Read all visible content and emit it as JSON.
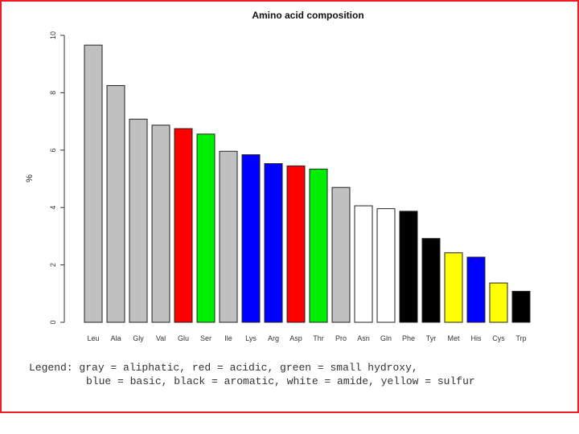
{
  "chart_data": {
    "type": "bar",
    "title": "Amino acid composition",
    "ylabel": "%",
    "xlabel": "",
    "ylim": [
      0,
      10
    ],
    "yticks": [
      0,
      2,
      4,
      6,
      8,
      10
    ],
    "grid": false,
    "categories": [
      "Leu",
      "Ala",
      "Gly",
      "Val",
      "Glu",
      "Ser",
      "Ile",
      "Lys",
      "Arg",
      "Asp",
      "Thr",
      "Pro",
      "Asn",
      "Gln",
      "Phe",
      "Tyr",
      "Met",
      "His",
      "Cys",
      "Trp"
    ],
    "values": [
      9.66,
      8.25,
      7.08,
      6.87,
      6.75,
      6.56,
      5.96,
      5.84,
      5.53,
      5.45,
      5.34,
      4.7,
      4.06,
      3.96,
      3.87,
      2.92,
      2.42,
      2.27,
      1.37,
      1.08
    ],
    "colors": [
      "#c0c0c0",
      "#c0c0c0",
      "#c0c0c0",
      "#c0c0c0",
      "#ff0000",
      "#00ee00",
      "#c0c0c0",
      "#0000ff",
      "#0000ff",
      "#ff0000",
      "#00ee00",
      "#c0c0c0",
      "#ffffff",
      "#ffffff",
      "#000000",
      "#000000",
      "#ffff00",
      "#0000ff",
      "#ffff00",
      "#000000"
    ]
  },
  "legend": {
    "line1": "Legend: gray = aliphatic, red = acidic, green = small hydroxy,",
    "line2": "blue = basic, black = aromatic, white = amide, yellow = sulfur"
  }
}
